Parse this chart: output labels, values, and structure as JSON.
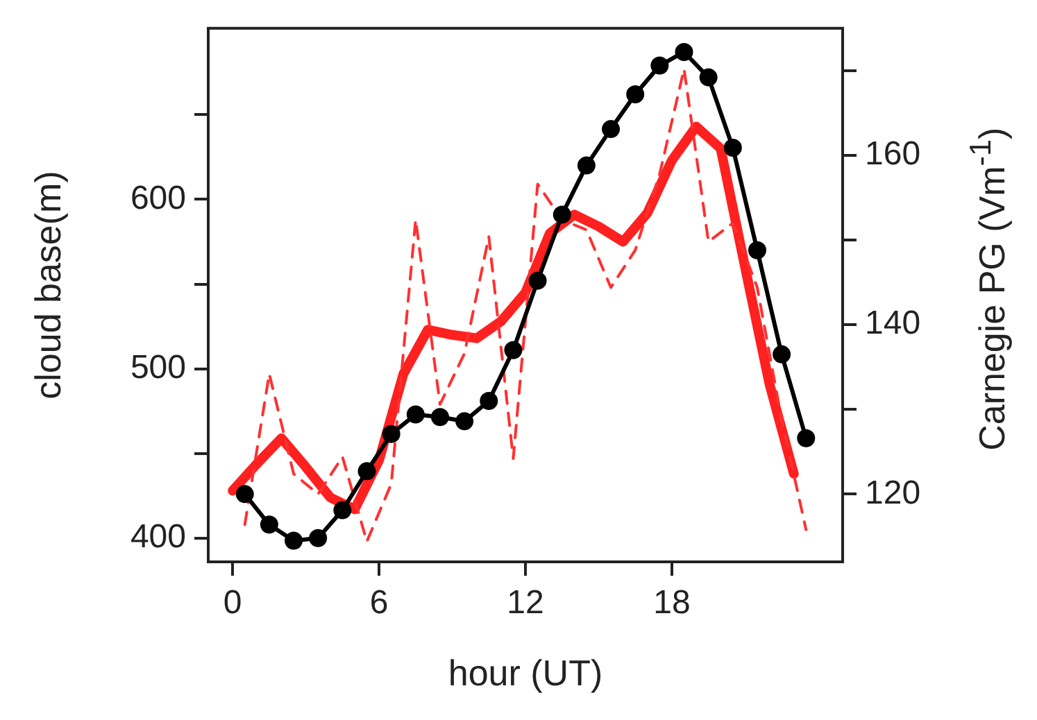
{
  "chart_data": {
    "type": "line",
    "xlabel": "hour (UT)",
    "ylabel": "cloud base(m)",
    "y2label": "Carnegie PG (Vm$^{-1}$)",
    "xlim": [
      -1,
      25
    ],
    "xticks": [
      0,
      6,
      12,
      18
    ],
    "ylim": [
      386,
      701
    ],
    "yticks": [
      400,
      {
        "value": 450,
        "label": null
      },
      500,
      {
        "value": 550,
        "label": null
      },
      600,
      {
        "value": 650,
        "label": null
      }
    ],
    "y2lim": [
      112,
      175
    ],
    "y2ticks": [
      120,
      {
        "value": 130,
        "label": null
      },
      140,
      {
        "value": 150,
        "label": null
      },
      160,
      {
        "value": 170,
        "label": null
      }
    ],
    "grid": false,
    "legend": false,
    "series": [
      {
        "color": "#ff3030",
        "axis": "y",
        "marker": "none",
        "line_style": "dashed",
        "x": [
          0.5,
          1.5,
          2.5,
          3.5,
          4.5,
          5.5,
          6.5,
          7.5,
          8.5,
          9.5,
          10.5,
          11.5,
          12.5,
          13.5,
          14.5,
          15.5,
          16.5,
          17.5,
          18.5,
          19.5,
          20.5,
          21.5,
          22.5,
          23.5
        ],
        "values": [
          408,
          497,
          438,
          426,
          448,
          398,
          432,
          588,
          479,
          509,
          578,
          447,
          609,
          588,
          582,
          548,
          570,
          615,
          677,
          575,
          586,
          548,
          470,
          405
        ]
      },
      {
        "color": "#ff2020",
        "axis": "y",
        "marker": "none",
        "line_style": "solid",
        "x": [
          0,
          1,
          2,
          3,
          4,
          5,
          6,
          7,
          8,
          9,
          10,
          11,
          12,
          13,
          14,
          15,
          16,
          17,
          18,
          19,
          20,
          21,
          22,
          23
        ],
        "values": [
          428,
          444,
          459,
          442,
          424,
          417,
          446,
          497,
          523,
          520,
          518,
          528,
          545,
          580,
          591,
          584,
          575,
          592,
          623,
          643,
          630,
          560,
          491,
          438
        ]
      },
      {
        "color": "#000000",
        "axis": "y2",
        "marker": "circle",
        "line_style": "solid",
        "x": [
          0.5,
          1.5,
          2.5,
          3.5,
          4.5,
          5.5,
          6.5,
          7.5,
          8.5,
          9.5,
          10.5,
          11.5,
          12.5,
          13.5,
          14.5,
          15.5,
          16.5,
          17.5,
          18.5,
          19.5,
          20.5,
          21.5,
          22.5,
          23.5
        ],
        "values": [
          120.0,
          116.4,
          114.5,
          114.8,
          118.1,
          122.7,
          127.1,
          129.4,
          129.1,
          128.6,
          131.0,
          137.0,
          145.2,
          153.0,
          158.8,
          163.1,
          167.2,
          170.6,
          172.2,
          169.2,
          160.9,
          148.8,
          136.5,
          126.6
        ]
      }
    ]
  }
}
